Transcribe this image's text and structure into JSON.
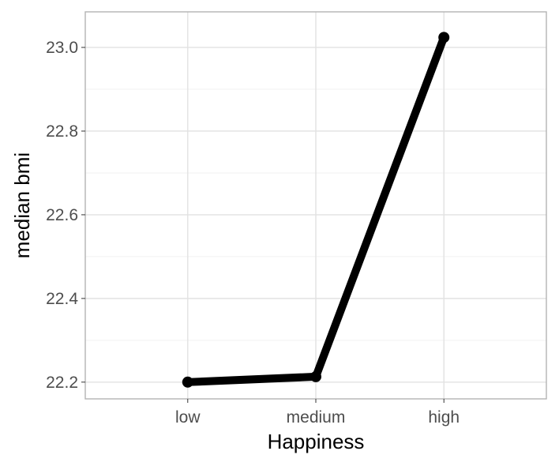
{
  "chart_data": {
    "type": "line",
    "title": "",
    "xlabel": "Happiness",
    "ylabel": "median bmi",
    "categories": [
      "low",
      "medium",
      "high"
    ],
    "series": [
      {
        "values": [
          22.2,
          22.213,
          23.024
        ]
      }
    ],
    "ylim": [
      22.16,
      23.085
    ],
    "y_ticks": [
      22.2,
      22.4,
      22.6,
      22.8,
      23.0
    ],
    "y_tick_labels": [
      "22.2",
      "22.4",
      "22.6",
      "22.8",
      "23.0"
    ],
    "y_minor_ticks": [
      22.3,
      22.5,
      22.7,
      22.9
    ],
    "grid": true,
    "legend": "none",
    "colors": {
      "line": "#000000",
      "grid_major": "#e2e2e2",
      "grid_minor": "#f0f0f0",
      "panel_border": "#b3b3b3",
      "tick_text": "#4d4d4d"
    }
  }
}
